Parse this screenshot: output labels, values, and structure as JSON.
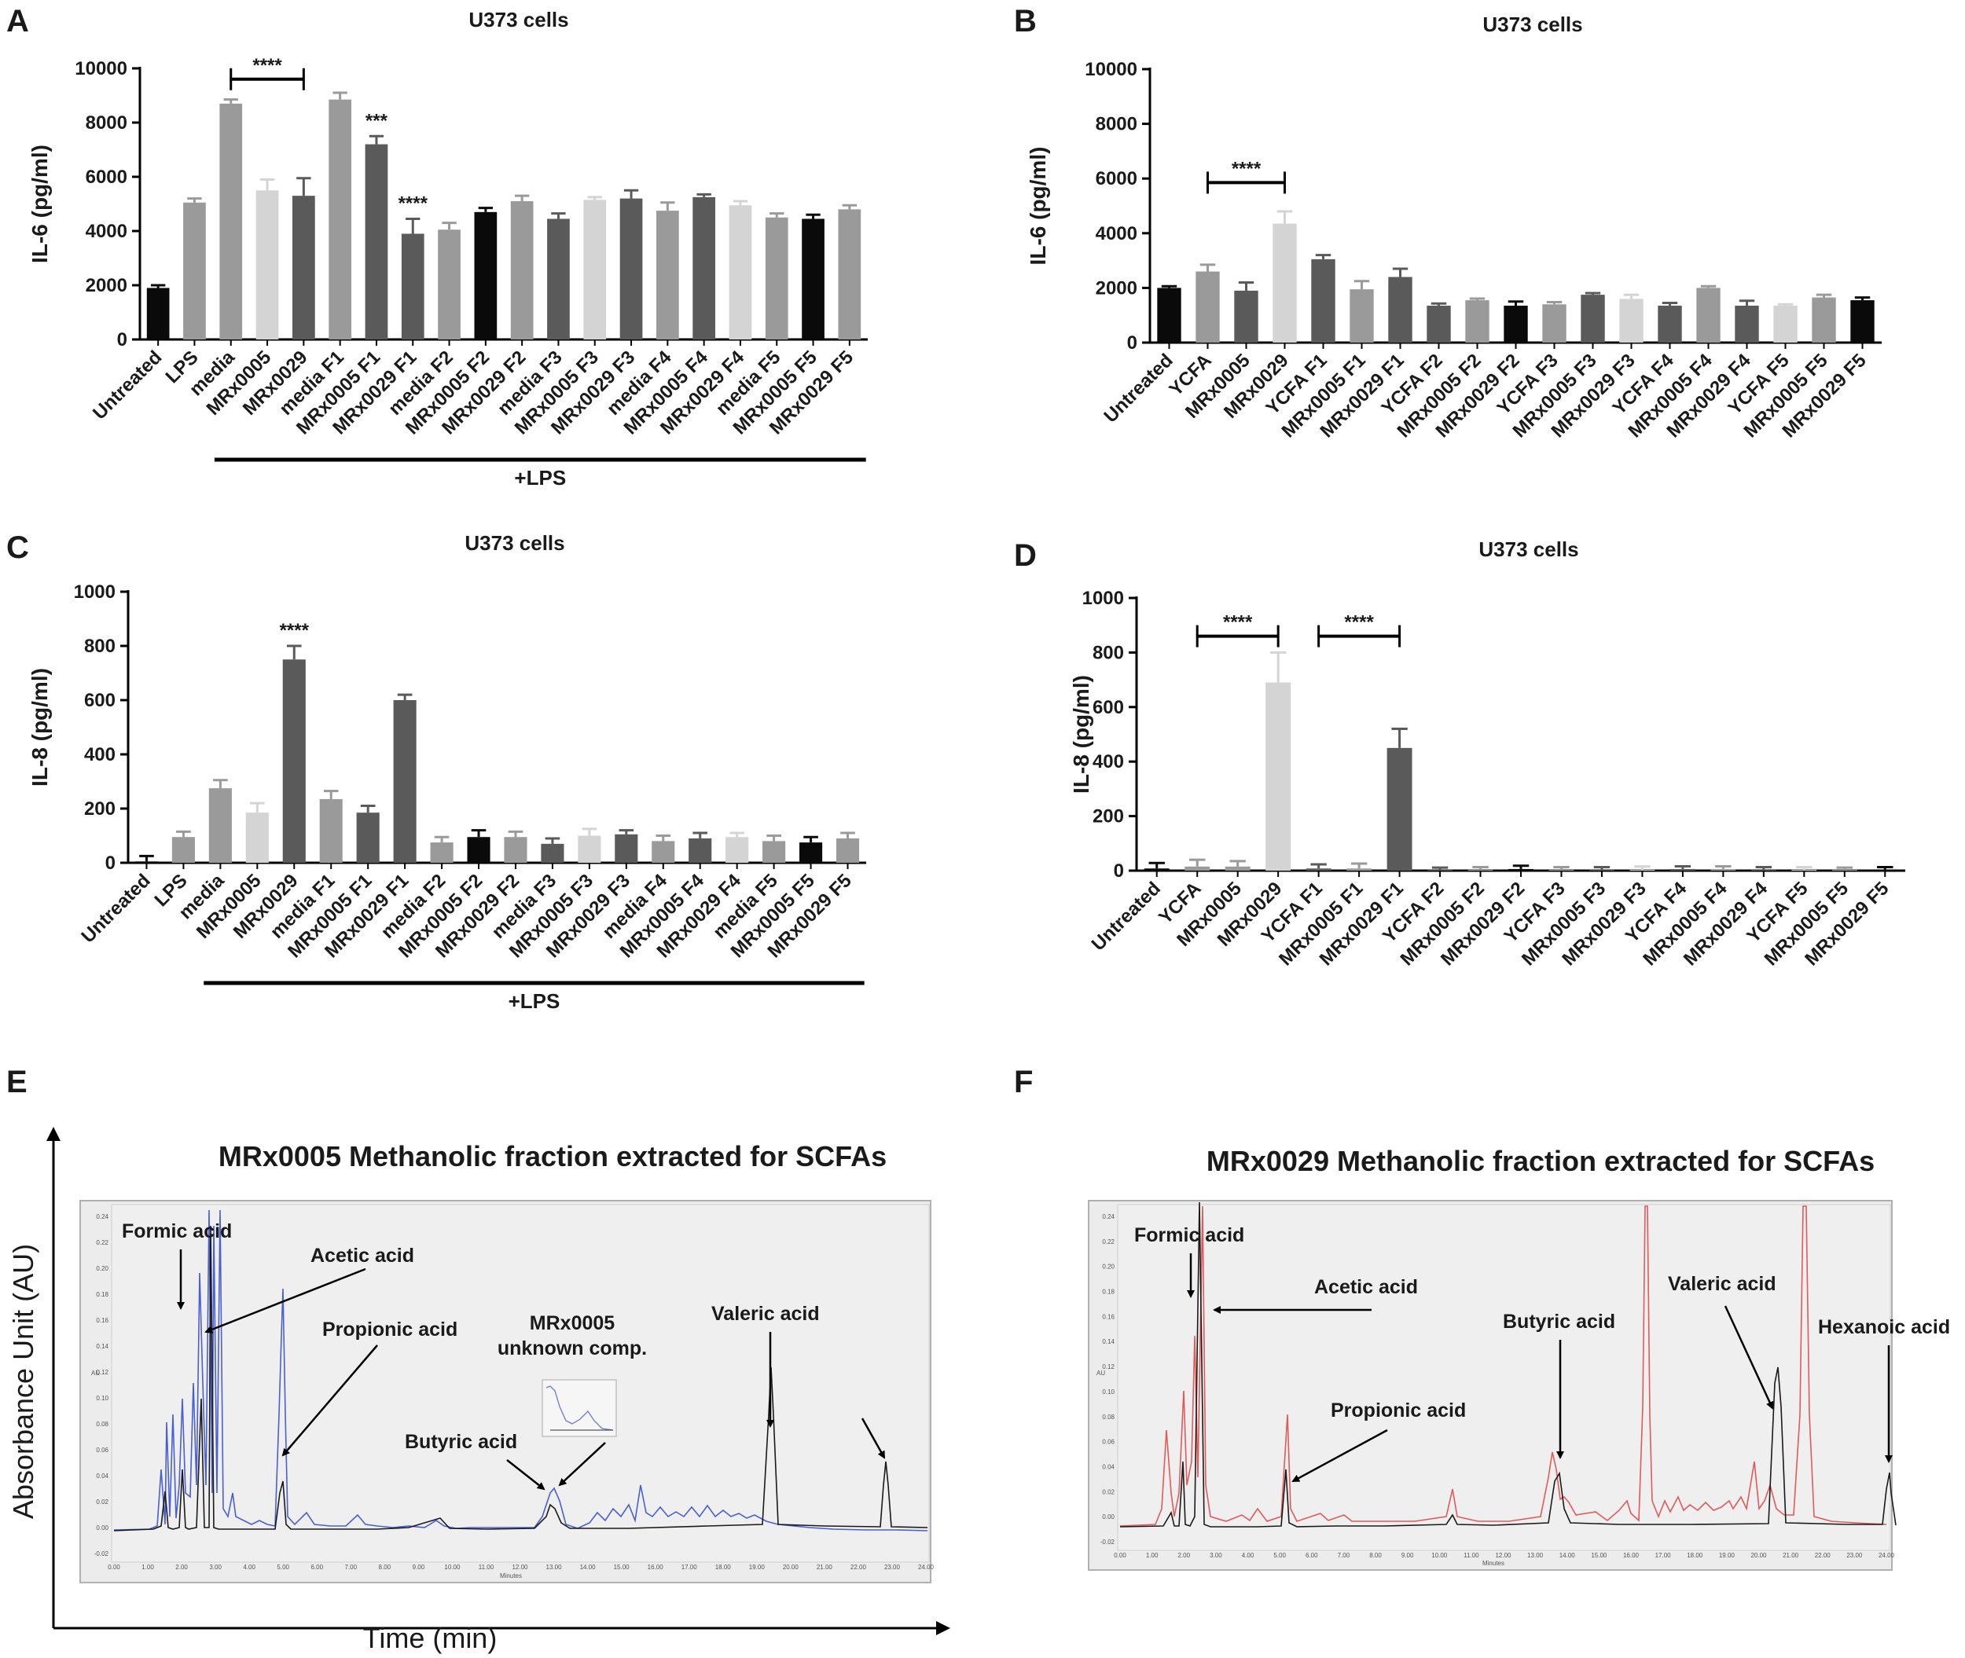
{
  "panels": {
    "A": "A",
    "B": "B",
    "C": "C",
    "D": "D",
    "E": "E",
    "F": "F"
  },
  "colors": {
    "black": "#0a0a0a",
    "dark": "#5a5a5a",
    "mid": "#9a9a9a",
    "light": "#d4d4d4",
    "chrom_bg": "#ececec",
    "blue": "#4a5fd0",
    "red": "#e05a5a",
    "trace_black": "#1a1a1a"
  },
  "chart_data": [
    {
      "id": "A",
      "type": "bar",
      "title": "U373 cells",
      "ylabel": "IL-6 (pg/ml)",
      "ylim": [
        0,
        10000
      ],
      "yticks": [
        "0",
        "2000",
        "4000",
        "6000",
        "8000",
        "10000"
      ],
      "categories": [
        "Untreated",
        "LPS",
        "media",
        "MRx0005",
        "MRx0029",
        "media F1",
        "MRx0005 F1",
        "MRx0029 F1",
        "media F2",
        "MRx0005 F2",
        "MRx0029 F2",
        "media F3",
        "MRx0005 F3",
        "MRx0029 F3",
        "media F4",
        "MRx0005 F4",
        "MRx0029 F4",
        "media F5",
        "MRx0005 F5",
        "MRx0029 F5"
      ],
      "values": [
        1900,
        5050,
        8700,
        5500,
        5300,
        8850,
        7200,
        3900,
        4050,
        4700,
        5100,
        4450,
        5150,
        5200,
        4750,
        5250,
        4950,
        4500,
        4450,
        4800
      ],
      "errors": [
        100,
        150,
        150,
        400,
        650,
        250,
        300,
        550,
        250,
        150,
        200,
        200,
        100,
        300,
        300,
        100,
        150,
        150,
        150,
        150
      ],
      "shades": [
        "black",
        "mid",
        "mid",
        "light",
        "dark",
        "mid",
        "dark",
        "dark",
        "mid",
        "black",
        "mid",
        "dark",
        "light",
        "dark",
        "mid",
        "dark",
        "light",
        "mid",
        "black",
        "mid"
      ],
      "annotations": [
        {
          "type": "bracket",
          "from": 2,
          "to": 4,
          "y": 9600,
          "text": "****"
        },
        {
          "type": "star",
          "index": 6,
          "text": "***"
        },
        {
          "type": "star",
          "index": 7,
          "text": "****"
        }
      ],
      "group_label": "+LPS",
      "group_from": 2,
      "group_to": 19
    },
    {
      "id": "B",
      "type": "bar",
      "title": "U373 cells",
      "ylabel": "IL-6 (pg/ml)",
      "ylim": [
        0,
        10000
      ],
      "yticks": [
        "0",
        "2000",
        "4000",
        "6000",
        "8000",
        "10000"
      ],
      "categories": [
        "Untreated",
        "YCFA",
        "MRx0005",
        "MRx0029",
        "YCFA F1",
        "MRx0005 F1",
        "MRx0029 F1",
        "YCFA F2",
        "MRx0005 F2",
        "MRx0029 F2",
        "YCFA F3",
        "MRx0005 F3",
        "MRx0029 F3",
        "YCFA F4",
        "MRx0005 F4",
        "MRx0029 F4",
        "YCFA F5",
        "MRx0005 F5",
        "MRx0029 F5"
      ],
      "values": [
        2000,
        2600,
        1900,
        4350,
        3050,
        1950,
        2400,
        1350,
        1550,
        1350,
        1400,
        1750,
        1600,
        1350,
        2000,
        1350,
        1350,
        1650,
        1550
      ],
      "errors": [
        60,
        250,
        300,
        450,
        150,
        300,
        300,
        80,
        60,
        150,
        80,
        60,
        150,
        100,
        60,
        180,
        50,
        100,
        100
      ],
      "shades": [
        "black",
        "mid",
        "dark",
        "light",
        "dark",
        "mid",
        "dark",
        "dark",
        "mid",
        "black",
        "mid",
        "dark",
        "light",
        "dark",
        "mid",
        "dark",
        "light",
        "mid",
        "black"
      ],
      "annotations": [
        {
          "type": "bracket",
          "from": 1,
          "to": 3,
          "y": 5850,
          "text": "****"
        }
      ]
    },
    {
      "id": "C",
      "type": "bar",
      "title": "U373 cells",
      "ylabel": "IL-8 (pg/ml)",
      "ylim": [
        0,
        1000
      ],
      "yticks": [
        "0",
        "200",
        "400",
        "600",
        "800",
        "1000"
      ],
      "categories": [
        "Untreated",
        "LPS",
        "media",
        "MRx0005",
        "MRx0029",
        "media F1",
        "MRx0005 F1",
        "MRx0029 F1",
        "media F2",
        "MRx0005 F2",
        "MRx0029 F2",
        "media F3",
        "MRx0005 F3",
        "MRx0029 F3",
        "media F4",
        "MRx0005 F4",
        "MRx0029 F4",
        "media F5",
        "MRx0005 F5",
        "MRx0029 F5"
      ],
      "values": [
        5,
        95,
        275,
        185,
        750,
        235,
        185,
        600,
        75,
        95,
        95,
        70,
        100,
        105,
        80,
        90,
        95,
        80,
        75,
        90
      ],
      "errors": [
        20,
        20,
        30,
        35,
        50,
        30,
        25,
        20,
        20,
        25,
        20,
        20,
        25,
        15,
        20,
        20,
        15,
        20,
        20,
        20
      ],
      "shades": [
        "black",
        "mid",
        "mid",
        "light",
        "dark",
        "mid",
        "dark",
        "dark",
        "mid",
        "black",
        "mid",
        "dark",
        "light",
        "dark",
        "mid",
        "dark",
        "light",
        "mid",
        "black",
        "mid"
      ],
      "annotations": [
        {
          "type": "star",
          "index": 4,
          "text": "****"
        }
      ],
      "group_label": "+LPS",
      "group_from": 2,
      "group_to": 19
    },
    {
      "id": "D",
      "type": "bar",
      "title": "U373 cells",
      "ylabel": "IL-8 (pg/ml)",
      "ylim": [
        0,
        1000
      ],
      "yticks": [
        "0",
        "200",
        "400",
        "600",
        "800",
        "1000"
      ],
      "categories": [
        "Untreated",
        "YCFA",
        "MRx0005",
        "MRx0029",
        "YCFA F1",
        "MRx0005 F1",
        "MRx0029 F1",
        "YCFA F2",
        "MRx0005 F2",
        "MRx0029 F2",
        "YCFA F3",
        "MRx0005 F3",
        "MRx0029 F3",
        "YCFA F4",
        "MRx0005 F4",
        "MRx0029 F4",
        "YCFA F5",
        "MRx0005 F5",
        "MRx0029 F5"
      ],
      "values": [
        8,
        15,
        15,
        690,
        8,
        8,
        450,
        3,
        3,
        6,
        3,
        3,
        3,
        6,
        6,
        3,
        3,
        3,
        3
      ],
      "errors": [
        20,
        25,
        20,
        110,
        15,
        18,
        70,
        8,
        10,
        12,
        10,
        10,
        12,
        10,
        10,
        10,
        10,
        8,
        10
      ],
      "shades": [
        "black",
        "mid",
        "mid",
        "light",
        "dark",
        "mid",
        "dark",
        "dark",
        "mid",
        "black",
        "mid",
        "dark",
        "light",
        "dark",
        "mid",
        "dark",
        "light",
        "mid",
        "black"
      ],
      "annotations": [
        {
          "type": "bracket",
          "from": 1,
          "to": 3,
          "y": 860,
          "text": "****"
        },
        {
          "type": "bracket",
          "from": 4,
          "to": 6,
          "y": 860,
          "text": "****"
        }
      ]
    }
  ],
  "chromatograms": {
    "E": {
      "title": "MRx0005 Methanolic fraction extracted for SCFAs",
      "yaxis": "Absorbance Unit (AU)",
      "xaxis": "Time (min)",
      "labels": [
        "Formic acid",
        "Acetic acid",
        "Propionic acid",
        "MRx0005",
        "unknown comp.",
        "Butyric acid",
        "Valeric acid"
      ],
      "xticks": [
        "0.00",
        "1.00",
        "2.00",
        "3.00",
        "4.00",
        "5.00",
        "6.00",
        "7.00",
        "8.00",
        "9.00",
        "10.00",
        "11.00",
        "12.00",
        "13.00",
        "14.00",
        "15.00",
        "16.00",
        "17.00",
        "18.00",
        "19.00",
        "20.00",
        "21.00",
        "22.00",
        "23.00",
        "24.00"
      ],
      "yticks": [
        "0.24",
        "0.22",
        "0.20",
        "0.18",
        "0.16",
        "0.14",
        "0.12",
        "0.10",
        "0.08",
        "0.06",
        "0.04",
        "0.02",
        "0.00",
        "-0.02"
      ],
      "minutes": "Minutes",
      "au": "AU"
    },
    "F": {
      "title": "MRx0029 Methanolic fraction extracted for SCFAs",
      "labels": [
        "Formic acid",
        "Acetic acid",
        "Butyric acid",
        "Propionic acid",
        "Valeric acid",
        "Hexanoic acid"
      ],
      "xticks": [
        "0.00",
        "1.00",
        "2.00",
        "3.00",
        "4.00",
        "5.00",
        "6.00",
        "7.00",
        "8.00",
        "9.00",
        "10.00",
        "11.00",
        "12.00",
        "13.00",
        "14.00",
        "15.00",
        "16.00",
        "17.00",
        "18.00",
        "19.00",
        "20.00",
        "21.00",
        "22.00",
        "23.00",
        "24.00"
      ],
      "yticks": [
        "0.24",
        "0.22",
        "0.20",
        "0.18",
        "0.16",
        "0.14",
        "0.12",
        "0.10",
        "0.08",
        "0.06",
        "0.04",
        "0.02",
        "0.00",
        "-0.02"
      ],
      "minutes": "Minutes",
      "au": "AU"
    }
  }
}
